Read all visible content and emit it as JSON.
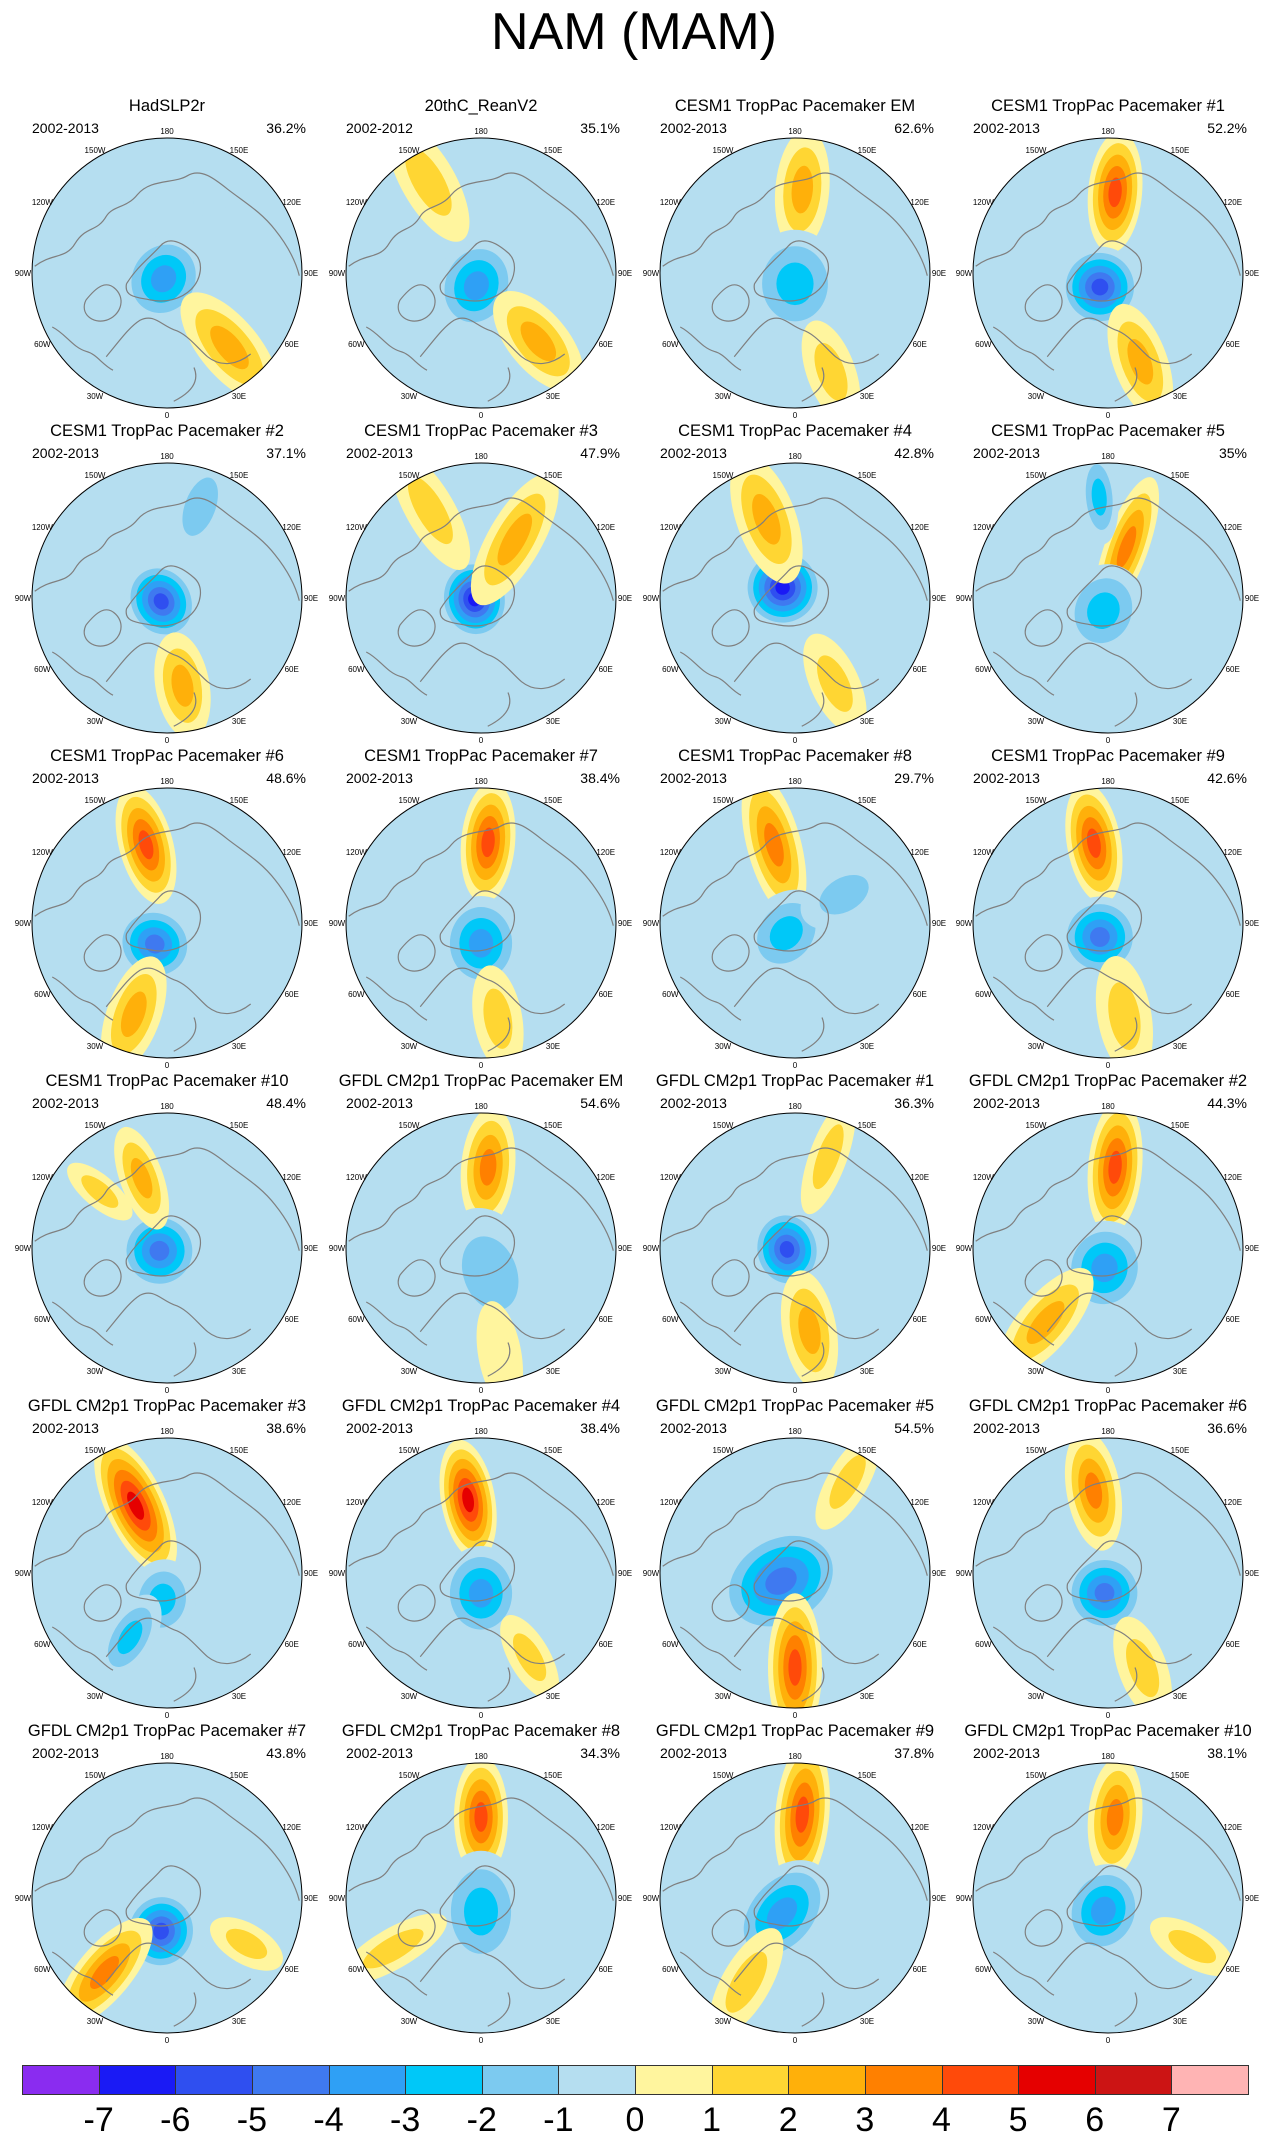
{
  "title": "NAM (MAM)",
  "projection_labels": {
    "lon": [
      "180",
      "150E",
      "120E",
      "90E",
      "60E",
      "30E",
      "0",
      "30W",
      "60W",
      "90W",
      "120W",
      "150W"
    ]
  },
  "colors": {
    "coast": "#7f7f7f",
    "levels": [
      "#8a2cf0",
      "#1a1af5",
      "#2f4ff0",
      "#3f79f0",
      "#2fa0f5",
      "#00c8f8",
      "#7ccaf0",
      "#b5def0",
      "#fff59e",
      "#ffd633",
      "#ffb00a",
      "#ff8000",
      "#ff4a0a",
      "#e50000",
      "#cc1414",
      "#ffb4b4"
    ]
  },
  "colorbar": {
    "labels": [
      "-7",
      "-6",
      "-5",
      "-4",
      "-3",
      "-2",
      "-1",
      "0",
      "1",
      "2",
      "3",
      "4",
      "5",
      "6",
      "7"
    ]
  },
  "panels": [
    {
      "title": "HadSLP2r",
      "years": "2002-2013",
      "pct": "36.2%",
      "features": [
        {
          "kind": "low",
          "lon": -30,
          "r": 0.05,
          "a": 0.34,
          "s": 0.3,
          "v": -3.5
        },
        {
          "kind": "high",
          "lon": 40,
          "r": 0.72,
          "a": 0.5,
          "s": 0.22,
          "v": 2.2
        },
        {
          "kind": "low",
          "lon": 150,
          "r": 0.8,
          "a": 0.3,
          "s": 0.16,
          "v": -1
        }
      ]
    },
    {
      "title": "20thC_ReanV2",
      "years": "2002-2012",
      "pct": "35.1%",
      "features": [
        {
          "kind": "low",
          "lon": -20,
          "r": 0.1,
          "a": 0.36,
          "s": 0.3,
          "v": -4
        },
        {
          "kind": "high",
          "lon": 40,
          "r": 0.66,
          "a": 0.45,
          "s": 0.22,
          "v": 3
        },
        {
          "kind": "high",
          "lon": -150,
          "r": 0.78,
          "a": 0.5,
          "s": 0.2,
          "v": 1.2
        }
      ]
    },
    {
      "title": "CESM1 TropPac Pacemaker EM",
      "years": "2002-2013",
      "pct": "62.6%",
      "features": [
        {
          "kind": "high",
          "lon": 175,
          "r": 0.62,
          "a": 0.45,
          "s": 0.2,
          "v": 3
        },
        {
          "kind": "low",
          "lon": 0,
          "r": 0.08,
          "a": 0.4,
          "s": 0.35,
          "v": -2.2
        },
        {
          "kind": "high",
          "lon": 20,
          "r": 0.78,
          "a": 0.4,
          "s": 0.18,
          "v": 1.2
        }
      ]
    },
    {
      "title": "CESM1 TropPac Pacemaker #1",
      "years": "2002-2013",
      "pct": "52.2%",
      "features": [
        {
          "kind": "high",
          "lon": 175,
          "r": 0.6,
          "a": 0.45,
          "s": 0.2,
          "v": 5
        },
        {
          "kind": "low",
          "lon": -30,
          "r": 0.12,
          "a": 0.3,
          "s": 0.3,
          "v": -5.5
        },
        {
          "kind": "high",
          "lon": 20,
          "r": 0.7,
          "a": 0.45,
          "s": 0.2,
          "v": 2.5
        }
      ]
    },
    {
      "title": "CESM1 TropPac Pacemaker #2",
      "years": "2002-2013",
      "pct": "37.1%",
      "features": [
        {
          "kind": "low",
          "lon": -60,
          "r": 0.05,
          "a": 0.26,
          "s": 0.3,
          "v": -5.5
        },
        {
          "kind": "high",
          "lon": 10,
          "r": 0.66,
          "a": 0.4,
          "s": 0.2,
          "v": 2.5
        },
        {
          "kind": "low",
          "lon": 160,
          "r": 0.72,
          "a": 0.4,
          "s": 0.2,
          "v": -1.2
        }
      ]
    },
    {
      "title": "CESM1 TropPac Pacemaker #3",
      "years": "2002-2013",
      "pct": "47.9%",
      "features": [
        {
          "kind": "low",
          "lon": -80,
          "r": 0.05,
          "a": 0.26,
          "s": 0.3,
          "v": -6.5
        },
        {
          "kind": "high",
          "lon": 150,
          "r": 0.5,
          "a": 0.55,
          "s": 0.2,
          "v": 3
        },
        {
          "kind": "high",
          "lon": -150,
          "r": 0.75,
          "a": 0.5,
          "s": 0.18,
          "v": 1.8
        }
      ]
    },
    {
      "title": "CESM1 TropPac Pacemaker #4",
      "years": "2002-2013",
      "pct": "42.8%",
      "features": [
        {
          "kind": "low",
          "lon": -130,
          "r": 0.12,
          "a": 0.3,
          "s": 0.3,
          "v": -6.5
        },
        {
          "kind": "high",
          "lon": -160,
          "r": 0.62,
          "a": 0.5,
          "s": 0.22,
          "v": 2.8
        },
        {
          "kind": "high",
          "lon": 25,
          "r": 0.7,
          "a": 0.4,
          "s": 0.18,
          "v": 1.5
        }
      ]
    },
    {
      "title": "CESM1 TropPac Pacemaker #5",
      "years": "2002-2013",
      "pct": "35%",
      "features": [
        {
          "kind": "high",
          "lon": 160,
          "r": 0.4,
          "a": 0.55,
          "s": 0.16,
          "v": 3.5
        },
        {
          "kind": "low",
          "lon": -20,
          "r": 0.1,
          "a": 0.35,
          "s": 0.3,
          "v": -3
        },
        {
          "kind": "low",
          "lon": -175,
          "r": 0.75,
          "a": 0.35,
          "s": 0.14,
          "v": -2.5
        }
      ]
    },
    {
      "title": "CESM1 TropPac Pacemaker #6",
      "years": "2002-2013",
      "pct": "48.6%",
      "features": [
        {
          "kind": "high",
          "lon": -165,
          "r": 0.6,
          "a": 0.45,
          "s": 0.2,
          "v": 4.5
        },
        {
          "kind": "low",
          "lon": -30,
          "r": 0.18,
          "a": 0.28,
          "s": 0.3,
          "v": -5
        },
        {
          "kind": "high",
          "lon": -20,
          "r": 0.72,
          "a": 0.45,
          "s": 0.2,
          "v": 2.2
        }
      ]
    },
    {
      "title": "CESM1 TropPac Pacemaker #7",
      "years": "2002-2013",
      "pct": "38.4%",
      "features": [
        {
          "kind": "high",
          "lon": 175,
          "r": 0.6,
          "a": 0.45,
          "s": 0.2,
          "v": 4.5
        },
        {
          "kind": "low",
          "lon": 0,
          "r": 0.15,
          "a": 0.35,
          "s": 0.3,
          "v": -3.5
        },
        {
          "kind": "high",
          "lon": 10,
          "r": 0.72,
          "a": 0.4,
          "s": 0.18,
          "v": 1.2
        }
      ]
    },
    {
      "title": "CESM1 TropPac Pacemaker #8",
      "years": "2002-2013",
      "pct": "29.7%",
      "features": [
        {
          "kind": "high",
          "lon": -165,
          "r": 0.6,
          "a": 0.55,
          "s": 0.2,
          "v": 4
        },
        {
          "kind": "low",
          "lon": -40,
          "r": 0.1,
          "a": 0.35,
          "s": 0.28,
          "v": -2.5
        },
        {
          "kind": "low",
          "lon": 120,
          "r": 0.42,
          "a": 0.35,
          "s": 0.22,
          "v": -2
        }
      ]
    },
    {
      "title": "CESM1 TropPac Pacemaker #9",
      "years": "2002-2013",
      "pct": "42.6%",
      "features": [
        {
          "kind": "high",
          "lon": -170,
          "r": 0.6,
          "a": 0.45,
          "s": 0.2,
          "v": 4.5
        },
        {
          "kind": "low",
          "lon": -30,
          "r": 0.12,
          "a": 0.3,
          "s": 0.3,
          "v": -4.5
        },
        {
          "kind": "high",
          "lon": 10,
          "r": 0.7,
          "a": 0.45,
          "s": 0.2,
          "v": 2
        }
      ]
    },
    {
      "title": "CESM1 TropPac Pacemaker #10",
      "years": "2002-2013",
      "pct": "48.4%",
      "features": [
        {
          "kind": "low",
          "lon": -70,
          "r": 0.06,
          "a": 0.3,
          "s": 0.3,
          "v": -5
        },
        {
          "kind": "high",
          "lon": -160,
          "r": 0.55,
          "a": 0.4,
          "s": 0.16,
          "v": 2.8
        },
        {
          "kind": "high",
          "lon": -130,
          "r": 0.65,
          "a": 0.3,
          "s": 0.12,
          "v": 2
        }
      ]
    },
    {
      "title": "GFDL CM2p1 TropPac Pacemaker EM",
      "years": "2002-2013",
      "pct": "54.6%",
      "features": [
        {
          "kind": "high",
          "lon": 175,
          "r": 0.6,
          "a": 0.45,
          "s": 0.2,
          "v": 3.8
        },
        {
          "kind": "low",
          "lon": 20,
          "r": 0.2,
          "a": 0.5,
          "s": 0.35,
          "v": -1.5
        },
        {
          "kind": "high",
          "lon": 10,
          "r": 0.8,
          "a": 0.4,
          "s": 0.16,
          "v": 1
        }
      ]
    },
    {
      "title": "GFDL CM2p1 TropPac Pacemaker #1",
      "years": "2002-2013",
      "pct": "36.3%",
      "features": [
        {
          "kind": "low",
          "lon": -80,
          "r": 0.06,
          "a": 0.26,
          "s": 0.3,
          "v": -6
        },
        {
          "kind": "high",
          "lon": 10,
          "r": 0.62,
          "a": 0.45,
          "s": 0.2,
          "v": 2.8
        },
        {
          "kind": "high",
          "lon": 160,
          "r": 0.72,
          "a": 0.45,
          "s": 0.14,
          "v": 1.5
        }
      ]
    },
    {
      "title": "GFDL CM2p1 TropPac Pacemaker #2",
      "years": "2002-2013",
      "pct": "44.3%",
      "features": [
        {
          "kind": "high",
          "lon": 175,
          "r": 0.6,
          "a": 0.5,
          "s": 0.2,
          "v": 4.5
        },
        {
          "kind": "low",
          "lon": -10,
          "r": 0.15,
          "a": 0.35,
          "s": 0.32,
          "v": -4
        },
        {
          "kind": "high",
          "lon": -40,
          "r": 0.72,
          "a": 0.5,
          "s": 0.2,
          "v": 2.5
        }
      ]
    },
    {
      "title": "GFDL CM2p1 TropPac Pacemaker #3",
      "years": "2002-2013",
      "pct": "38.6%",
      "features": [
        {
          "kind": "high",
          "lon": -155,
          "r": 0.55,
          "a": 0.55,
          "s": 0.22,
          "v": 5.8
        },
        {
          "kind": "low",
          "lon": -10,
          "r": 0.2,
          "a": 0.3,
          "s": 0.25,
          "v": -2.8
        },
        {
          "kind": "low",
          "lon": -30,
          "r": 0.55,
          "a": 0.35,
          "s": 0.18,
          "v": -2.5
        }
      ]
    },
    {
      "title": "GFDL CM2p1 TropPac Pacemaker #4",
      "years": "2002-2013",
      "pct": "38.4%",
      "features": [
        {
          "kind": "high",
          "lon": -170,
          "r": 0.55,
          "a": 0.45,
          "s": 0.2,
          "v": 5.5
        },
        {
          "kind": "low",
          "lon": 0,
          "r": 0.15,
          "a": 0.35,
          "s": 0.3,
          "v": -3.5
        },
        {
          "kind": "high",
          "lon": 30,
          "r": 0.72,
          "a": 0.35,
          "s": 0.15,
          "v": 1.3
        }
      ]
    },
    {
      "title": "GFDL CM2p1 TropPac Pacemaker #5",
      "years": "2002-2013",
      "pct": "54.5%",
      "features": [
        {
          "kind": "low",
          "lon": -60,
          "r": 0.12,
          "a": 0.5,
          "s": 0.38,
          "v": -4.2
        },
        {
          "kind": "high",
          "lon": 0,
          "r": 0.7,
          "a": 0.55,
          "s": 0.2,
          "v": 4.5
        },
        {
          "kind": "high",
          "lon": 150,
          "r": 0.78,
          "a": 0.4,
          "s": 0.15,
          "v": 1.2
        }
      ]
    },
    {
      "title": "GFDL CM2p1 TropPac Pacemaker #6",
      "years": "2002-2013",
      "pct": "36.6%",
      "features": [
        {
          "kind": "high",
          "lon": -170,
          "r": 0.62,
          "a": 0.45,
          "s": 0.2,
          "v": 3.8
        },
        {
          "kind": "low",
          "lon": -10,
          "r": 0.15,
          "a": 0.3,
          "s": 0.3,
          "v": -5
        },
        {
          "kind": "high",
          "lon": 20,
          "r": 0.75,
          "a": 0.4,
          "s": 0.18,
          "v": 1.5
        }
      ]
    },
    {
      "title": "GFDL CM2p1 TropPac Pacemaker #7",
      "years": "2002-2013",
      "pct": "43.8%",
      "features": [
        {
          "kind": "low",
          "lon": -10,
          "r": 0.25,
          "a": 0.3,
          "s": 0.28,
          "v": -5.5
        },
        {
          "kind": "high",
          "lon": -40,
          "r": 0.72,
          "a": 0.5,
          "s": 0.2,
          "v": 3.5
        },
        {
          "kind": "high",
          "lon": 60,
          "r": 0.68,
          "a": 0.3,
          "s": 0.15,
          "v": 1.5
        }
      ]
    },
    {
      "title": "GFDL CM2p1 TropPac Pacemaker #8",
      "years": "2002-2013",
      "pct": "34.3%",
      "features": [
        {
          "kind": "high",
          "lon": 180,
          "r": 0.6,
          "a": 0.45,
          "s": 0.2,
          "v": 5
        },
        {
          "kind": "low",
          "lon": 0,
          "r": 0.1,
          "a": 0.45,
          "s": 0.32,
          "v": -3
        },
        {
          "kind": "high",
          "lon": -60,
          "r": 0.75,
          "a": 0.45,
          "s": 0.15,
          "v": 1.5
        }
      ]
    },
    {
      "title": "GFDL CM2p1 TropPac Pacemaker #9",
      "years": "2002-2013",
      "pct": "37.8%",
      "features": [
        {
          "kind": "high",
          "lon": 175,
          "r": 0.62,
          "a": 0.55,
          "s": 0.2,
          "v": 5
        },
        {
          "kind": "low",
          "lon": -40,
          "r": 0.15,
          "a": 0.45,
          "s": 0.3,
          "v": -3.5
        },
        {
          "kind": "high",
          "lon": -30,
          "r": 0.72,
          "a": 0.45,
          "s": 0.18,
          "v": 2
        }
      ]
    },
    {
      "title": "GFDL CM2p1 TropPac Pacemaker #10",
      "years": "2002-2013",
      "pct": "38.1%",
      "features": [
        {
          "kind": "high",
          "lon": 175,
          "r": 0.6,
          "a": 0.45,
          "s": 0.2,
          "v": 4
        },
        {
          "kind": "low",
          "lon": -20,
          "r": 0.1,
          "a": 0.35,
          "s": 0.3,
          "v": -4
        },
        {
          "kind": "high",
          "lon": 60,
          "r": 0.72,
          "a": 0.35,
          "s": 0.15,
          "v": 1.2
        }
      ]
    }
  ]
}
